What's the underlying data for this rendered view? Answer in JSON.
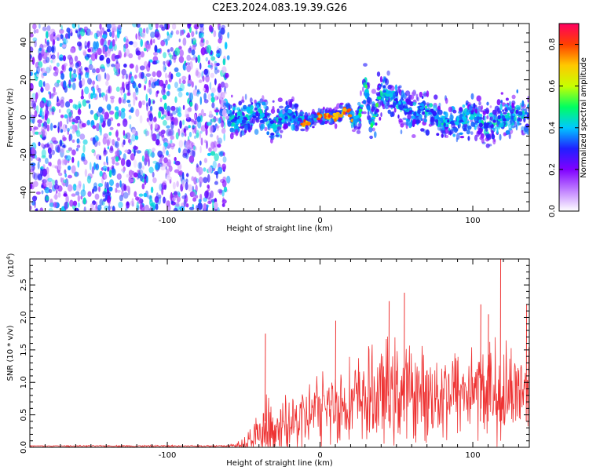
{
  "figure": {
    "title": "C2E3.2024.083.19.39.G26"
  },
  "chart_data": [
    {
      "type": "heatmap",
      "title": "C2E3.2024.083.19.39.G26",
      "xlabel": "Height of straight line (km)",
      "ylabel": "Frequency (Hz)",
      "xlim": [
        -190,
        137
      ],
      "ylim": [
        -50,
        50
      ],
      "x_ticks": [
        -100,
        0,
        100
      ],
      "y_ticks": [
        -40,
        -20,
        0,
        20,
        40
      ],
      "colorbar": {
        "label": "Normalized spectral amplitude",
        "range": [
          0.0,
          0.9
        ],
        "ticks": [
          0.0,
          0.2,
          0.4,
          0.6,
          0.8
        ],
        "colors": [
          "#ffffff",
          "#c080ff",
          "#8000ff",
          "#2020ff",
          "#00c8ff",
          "#00ff60",
          "#c8ff00",
          "#ffc800",
          "#ff4000",
          "#ff0060"
        ]
      },
      "noise_region_x": [
        -190,
        -60
      ],
      "signal_trace": {
        "x": [
          -60,
          -50,
          -40,
          -30,
          -20,
          -10,
          0,
          10,
          18,
          22,
          26,
          30,
          34,
          38,
          42,
          50,
          60,
          70,
          80,
          90,
          100,
          110,
          120,
          130,
          137
        ],
        "y": [
          0,
          -2,
          3,
          -5,
          2,
          -3,
          1,
          0,
          5,
          -3,
          2,
          18,
          -5,
          10,
          15,
          8,
          2,
          5,
          -3,
          -2,
          0,
          -5,
          0,
          2,
          1
        ]
      }
    },
    {
      "type": "line",
      "xlabel": "Height of straight line (km)",
      "ylabel": "SNR (10 * v/v)",
      "y_multiplier": "(x10",
      "y_multiplier_exp": "4",
      "y_multiplier_close": ")",
      "xlim": [
        -190,
        137
      ],
      "ylim": [
        0,
        2.9
      ],
      "x_ticks": [
        -100,
        0,
        100
      ],
      "y_ticks": [
        "0.0",
        "0.5",
        "1.0",
        "1.5",
        "2.0",
        "2.5"
      ],
      "series_color": "#ee3333",
      "envelope": {
        "x": [
          -190,
          -60,
          -50,
          -40,
          -35,
          -30,
          -20,
          -10,
          0,
          10,
          20,
          30,
          40,
          50,
          60,
          70,
          80,
          90,
          100,
          110,
          120,
          130,
          137
        ],
        "base": [
          0.02,
          0.02,
          0.05,
          0.15,
          0.2,
          0.25,
          0.35,
          0.45,
          0.6,
          0.65,
          0.7,
          0.75,
          0.8,
          0.85,
          0.85,
          0.8,
          0.85,
          0.85,
          0.9,
          0.9,
          0.85,
          0.9,
          1.0
        ],
        "amp": [
          0.01,
          0.02,
          0.15,
          0.5,
          0.7,
          0.6,
          0.55,
          0.6,
          0.7,
          0.8,
          0.8,
          0.9,
          1.0,
          1.0,
          0.9,
          0.85,
          0.9,
          0.9,
          0.9,
          0.9,
          1.0,
          0.8,
          0.9
        ]
      },
      "peaks": [
        {
          "x": -36,
          "y": 1.75
        },
        {
          "x": 10,
          "y": 1.95
        },
        {
          "x": 45,
          "y": 2.25
        },
        {
          "x": 55,
          "y": 2.38
        },
        {
          "x": 105,
          "y": 2.2
        },
        {
          "x": 110,
          "y": 2.05
        },
        {
          "x": 118,
          "y": 2.92
        },
        {
          "x": 135,
          "y": 2.2
        }
      ]
    }
  ]
}
